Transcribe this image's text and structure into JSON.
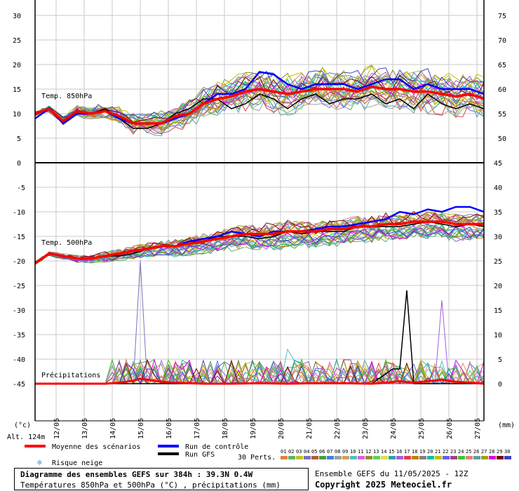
{
  "chart_data": [
    {
      "type": "line",
      "title": "Temp. 850hPa",
      "left_axis": {
        "min": 0,
        "max": 30,
        "ticks": [
          0,
          5,
          10,
          15,
          20,
          25,
          30
        ]
      },
      "right_axis": {
        "min": 45,
        "max": 75,
        "ticks": [
          45,
          50,
          55,
          60,
          65,
          70,
          75
        ]
      },
      "x_labels": [
        "12/05",
        "13/05",
        "14/05",
        "15/05",
        "16/05",
        "17/05",
        "18/05",
        "19/05",
        "20/05",
        "21/05",
        "22/05",
        "23/05",
        "24/05",
        "25/05",
        "26/05",
        "27/05"
      ],
      "grid": true,
      "series": [
        {
          "name": "Moyenne des scénarios",
          "color": "#ff0000",
          "x_hours": [
            0,
            12,
            24,
            36,
            48,
            60,
            72,
            84,
            96,
            108,
            120,
            132,
            144,
            156,
            168,
            180,
            192,
            204,
            216,
            228,
            240,
            252,
            264,
            276,
            288,
            300,
            312,
            324,
            336,
            348,
            360,
            372,
            384
          ],
          "values": [
            10,
            11,
            8.5,
            10.5,
            10,
            10.5,
            9.5,
            8,
            8,
            8,
            9.5,
            10,
            12,
            13,
            13.5,
            14.5,
            15,
            14.5,
            14,
            14.5,
            15,
            15,
            15,
            14.5,
            15.5,
            15,
            15,
            14.5,
            14.5,
            14,
            13.5,
            14,
            13
          ]
        },
        {
          "name": "Run de contrôle",
          "color": "#0000ff",
          "x_hours": [
            0,
            12,
            24,
            36,
            48,
            60,
            72,
            84,
            96,
            108,
            120,
            132,
            144,
            156,
            168,
            180,
            192,
            204,
            216,
            228,
            240,
            252,
            264,
            276,
            288,
            300,
            312,
            324,
            336,
            348,
            360,
            372,
            384
          ],
          "values": [
            9,
            11,
            8,
            10,
            10,
            10.5,
            9,
            8,
            8,
            8,
            9,
            10,
            12,
            14,
            14,
            15,
            18.5,
            18,
            16,
            15,
            16,
            16,
            16,
            15,
            16,
            17,
            17,
            15,
            16,
            15,
            15,
            15,
            14
          ]
        },
        {
          "name": "Run GFS",
          "color": "#000000",
          "x_hours": [
            0,
            12,
            24,
            36,
            48,
            60,
            72,
            84,
            96,
            108,
            120,
            132,
            144,
            156,
            168,
            180,
            192,
            204,
            216,
            228,
            240,
            252,
            264,
            276,
            288,
            300,
            312,
            324,
            336,
            348,
            360,
            372,
            384
          ],
          "values": [
            10,
            11,
            8,
            10.5,
            10,
            11,
            9,
            7,
            7,
            8,
            10,
            11,
            13,
            13,
            11,
            12,
            14,
            13,
            11,
            13,
            14,
            12,
            13,
            13,
            14,
            12,
            13,
            11,
            14,
            12,
            11,
            12,
            11
          ]
        }
      ]
    },
    {
      "type": "line",
      "title": "Temp. 500hPa",
      "left_axis": {
        "min": -45,
        "max": 0,
        "ticks": [
          -45,
          -40,
          -35,
          -30,
          -25,
          -20,
          -15,
          -10,
          -5,
          0
        ]
      },
      "right_axis": {
        "min": 0,
        "max": 45,
        "ticks": [
          0,
          5,
          10,
          15,
          20,
          25,
          30,
          35,
          40,
          45
        ]
      },
      "grid": true,
      "series": [
        {
          "name": "Moyenne des scénarios",
          "color": "#ff0000",
          "x_hours": [
            0,
            12,
            24,
            36,
            48,
            60,
            72,
            84,
            96,
            108,
            120,
            132,
            144,
            156,
            168,
            180,
            192,
            204,
            216,
            228,
            240,
            252,
            264,
            276,
            288,
            300,
            312,
            324,
            336,
            348,
            360,
            372,
            384
          ],
          "values": [
            -20.5,
            -18.5,
            -19,
            -19.5,
            -19.5,
            -19,
            -18.5,
            -18,
            -17.5,
            -17,
            -17,
            -16.5,
            -16,
            -15.5,
            -15,
            -14.5,
            -14.5,
            -14.5,
            -14,
            -14,
            -14,
            -13.5,
            -13.5,
            -13,
            -13,
            -12.5,
            -12.5,
            -12,
            -12,
            -12,
            -12.5,
            -12.5,
            -12.5
          ]
        },
        {
          "name": "Run de contrôle",
          "color": "#0000ff",
          "x_hours": [
            0,
            12,
            24,
            36,
            48,
            60,
            72,
            84,
            96,
            108,
            120,
            132,
            144,
            156,
            168,
            180,
            192,
            204,
            216,
            228,
            240,
            252,
            264,
            276,
            288,
            300,
            312,
            324,
            336,
            348,
            360,
            372,
            384
          ],
          "values": [
            -20.5,
            -18.5,
            -19,
            -19.5,
            -19.5,
            -19,
            -18.5,
            -18,
            -17.5,
            -17,
            -17,
            -16,
            -15.5,
            -15,
            -14,
            -14.5,
            -15,
            -14,
            -14,
            -14,
            -13.5,
            -13,
            -13,
            -12.5,
            -12,
            -11.5,
            -10,
            -10.5,
            -9.5,
            -10,
            -9,
            -9,
            -10
          ]
        },
        {
          "name": "Run GFS",
          "color": "#000000",
          "x_hours": [
            0,
            12,
            24,
            36,
            48,
            60,
            72,
            84,
            96,
            108,
            120,
            132,
            144,
            156,
            168,
            180,
            192,
            204,
            216,
            228,
            240,
            252,
            264,
            276,
            288,
            300,
            312,
            324,
            336,
            348,
            360,
            372,
            384
          ],
          "values": [
            -20.5,
            -18.5,
            -19,
            -19.5,
            -19.5,
            -19,
            -19,
            -18.5,
            -17.5,
            -17,
            -17,
            -16,
            -16,
            -15,
            -15,
            -15,
            -15.5,
            -15,
            -14,
            -14.5,
            -14,
            -14,
            -14,
            -13,
            -13,
            -13,
            -13,
            -12.5,
            -12,
            -12.5,
            -13,
            -12.5,
            -13
          ]
        }
      ]
    },
    {
      "type": "line",
      "title": "Précipitations",
      "unit": "mm",
      "range": [
        0,
        45
      ],
      "series": [
        {
          "name": "Moyenne des scénarios",
          "color": "#ff0000",
          "x_hours": [
            0,
            24,
            48,
            60,
            72,
            84,
            90,
            96,
            102,
            108,
            114,
            120,
            132,
            144,
            168,
            192,
            216,
            240,
            264,
            288,
            300,
            312,
            324,
            336,
            348,
            360,
            372,
            384
          ],
          "values": [
            0,
            0,
            0,
            0,
            0.2,
            0.6,
            1,
            0.8,
            0.6,
            0.4,
            0.3,
            0.2,
            0.1,
            0,
            0,
            0.1,
            0,
            0.1,
            0.1,
            0,
            0.2,
            0.5,
            0.2,
            0.5,
            0.8,
            0.4,
            0.2,
            0
          ]
        },
        {
          "name": "Run GFS",
          "color": "#000000",
          "x_hours": [
            0,
            24,
            48,
            72,
            96,
            120,
            144,
            168,
            192,
            216,
            240,
            264,
            288,
            300,
            306,
            312,
            318,
            324,
            336,
            348,
            360,
            372,
            384
          ],
          "values": [
            0,
            0,
            0,
            0,
            0,
            0,
            0,
            0,
            0,
            0,
            0,
            0,
            0,
            2,
            3,
            3,
            19,
            0,
            0,
            0,
            0,
            0,
            0
          ]
        }
      ]
    }
  ],
  "labels": {
    "unit_left": "(°c)",
    "unit_right": "(mm)",
    "altitude": "Alt. 124m",
    "perts_label": "30 Perts.",
    "perts_numbers": [
      "01",
      "02",
      "03",
      "04",
      "05",
      "06",
      "07",
      "08",
      "09",
      "10",
      "11",
      "12",
      "13",
      "14",
      "15",
      "16",
      "17",
      "18",
      "19",
      "20",
      "21",
      "22",
      "23",
      "24",
      "25",
      "26",
      "27",
      "28",
      "29",
      "30"
    ],
    "perts_colors": [
      "#e08040",
      "#60b060",
      "#c0c030",
      "#8070c0",
      "#b06030",
      "#40a040",
      "#4080e0",
      "#a0a0a0",
      "#d0a060",
      "#50c0c0",
      "#e060e0",
      "#909030",
      "#60d060",
      "#e0e040",
      "#30a0a0",
      "#a060e0",
      "#e04040",
      "#c08000",
      "#808080",
      "#00c0a0",
      "#c0c000",
      "#6060e0",
      "#a04080",
      "#40c040",
      "#e08080",
      "#60a0a0",
      "#a0a000",
      "#e000e0",
      "#800000",
      "#4040c0"
    ],
    "legend_mean": "Moyenne des scénarios",
    "legend_control": "Run de contrôle",
    "legend_gfs": "Run GFS",
    "legend_snow": "Risque neige",
    "footer_title": "Diagramme des ensembles GEFS sur 384h : 39.3N 0.4W",
    "footer_subtitle": "Températures 850hPa et 500hPa (°C) , précipitations (mm)",
    "ensemble_info": "Ensemble GEFS du 11/05/2025 - 12Z",
    "copyright": "Copyright 2025 Meteociel.fr"
  }
}
